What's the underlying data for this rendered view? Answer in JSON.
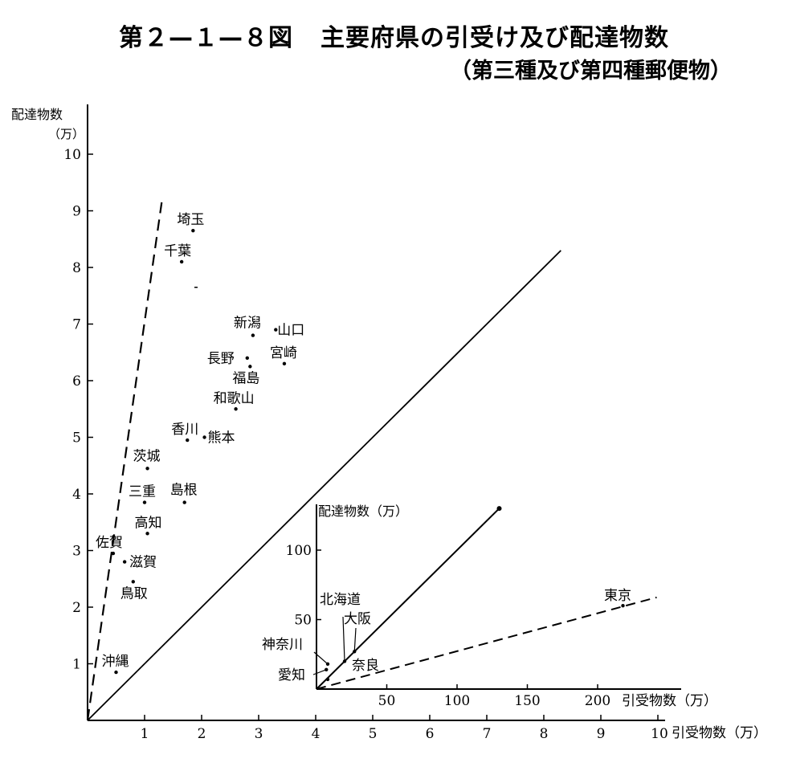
{
  "figure": {
    "number": "第２—１—８図",
    "title": "主要府県の引受け及び配達物数",
    "subtitle": "（第三種及び第四種郵便物）"
  },
  "chart_data": [
    {
      "type": "scatter",
      "xlabel": "引受物数（万）",
      "ylabel": "配達物数（万）",
      "xlim": [
        0,
        10
      ],
      "ylim": [
        0,
        10
      ],
      "xticks": [
        1,
        2,
        3,
        4,
        5,
        6,
        7,
        8,
        9,
        10
      ],
      "yticks": [
        1,
        2,
        3,
        4,
        5,
        6,
        7,
        8,
        9,
        10
      ],
      "grid": false,
      "reference_lines": [
        {
          "style": "solid",
          "from": [
            0,
            0
          ],
          "to": [
            8.3,
            8.3
          ]
        },
        {
          "style": "dashed",
          "from": [
            0,
            0
          ],
          "to": [
            1.3,
            9.15
          ]
        }
      ],
      "points": [
        {
          "label": "埼玉",
          "x": 1.85,
          "y": 8.65
        },
        {
          "label": "千葉",
          "x": 1.65,
          "y": 8.1
        },
        {
          "label": "新潟",
          "x": 2.9,
          "y": 6.8
        },
        {
          "label": "山口",
          "x": 3.3,
          "y": 6.9
        },
        {
          "label": "長野",
          "x": 2.8,
          "y": 6.4
        },
        {
          "label": "宮崎",
          "x": 3.45,
          "y": 6.3
        },
        {
          "label": "福島",
          "x": 2.85,
          "y": 6.25
        },
        {
          "label": "和歌山",
          "x": 2.6,
          "y": 5.5
        },
        {
          "label": "香川",
          "x": 1.75,
          "y": 4.95
        },
        {
          "label": "熊本",
          "x": 2.05,
          "y": 5.0
        },
        {
          "label": "茨城",
          "x": 1.05,
          "y": 4.45
        },
        {
          "label": "三重",
          "x": 1.0,
          "y": 3.85
        },
        {
          "label": "島根",
          "x": 1.7,
          "y": 3.85
        },
        {
          "label": "高知",
          "x": 1.05,
          "y": 3.3
        },
        {
          "label": "佐賀",
          "x": 0.45,
          "y": 2.95
        },
        {
          "label": "滋賀",
          "x": 0.65,
          "y": 2.8
        },
        {
          "label": "鳥取",
          "x": 0.8,
          "y": 2.45
        },
        {
          "label": "沖縄",
          "x": 0.5,
          "y": 0.85
        }
      ]
    },
    {
      "type": "scatter",
      "xlabel": "引受物数（万）",
      "ylabel": "配達物数（万）",
      "xlim": [
        0,
        250
      ],
      "ylim": [
        0,
        150
      ],
      "xticks": [
        50,
        100,
        150,
        200
      ],
      "yticks": [
        50,
        100
      ],
      "grid": false,
      "reference_lines": [
        {
          "style": "solid",
          "from": [
            0,
            0
          ],
          "to": [
            130,
            130
          ]
        },
        {
          "style": "dashed",
          "from": [
            0,
            0
          ],
          "to": [
            242,
            66
          ]
        }
      ],
      "points": [
        {
          "label": "東京",
          "x": 218,
          "y": 60
        },
        {
          "label": "北海道",
          "x": 20,
          "y": 20
        },
        {
          "label": "大阪",
          "x": 27,
          "y": 27
        },
        {
          "label": "神奈川",
          "x": 8,
          "y": 18
        },
        {
          "label": "愛知",
          "x": 7,
          "y": 14
        },
        {
          "label": "奈良",
          "x": 8,
          "y": 7
        }
      ]
    }
  ]
}
